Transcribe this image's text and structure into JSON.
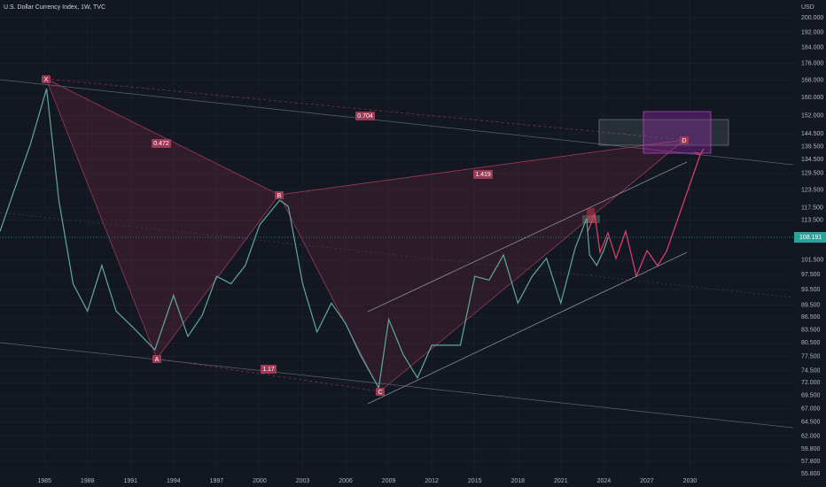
{
  "chart_data": {
    "type": "line",
    "title": "U.S. Dollar Currency Index, 1W, TVC",
    "y_unit": "USD",
    "log_scale": true,
    "grid": true,
    "color": "#5fa89c",
    "last_price": 108.191,
    "x": [
      1981.9,
      1983,
      1984,
      1985.15,
      1986,
      1987,
      1988,
      1989,
      1990,
      1991.2,
      1992.7,
      1994,
      1995,
      1996,
      1997,
      1998,
      1999,
      2000,
      2001.4,
      2002,
      2003,
      2004,
      2005,
      2006,
      2007,
      2008.3,
      2009,
      2010,
      2011,
      2012,
      2013,
      2014,
      2015,
      2016,
      2017,
      2018,
      2019,
      2020,
      2021,
      2022,
      2022.8,
      2023,
      2023.5,
      2024,
      2024.3
    ],
    "values": [
      110,
      125,
      140,
      164,
      120,
      95,
      88,
      100,
      88,
      84,
      79,
      92,
      82,
      87,
      97,
      95,
      100,
      112,
      120,
      118,
      95,
      83,
      90,
      85,
      78,
      71,
      86,
      78,
      73,
      80,
      80,
      80,
      97,
      96,
      103,
      90,
      97,
      102,
      90,
      105,
      114,
      103,
      100,
      104.5,
      108.2
    ],
    "xlim": [
      1981.9,
      2037.2
    ],
    "ylim": [
      53.8,
      210.2
    ],
    "xticks": [
      1985,
      1988,
      1991,
      1994,
      1997,
      2000,
      2003,
      2006,
      2009,
      2012,
      2015,
      2018,
      2021,
      2024,
      2027,
      2030
    ],
    "yticks": [
      {
        "value": 200,
        "label": "200.000"
      },
      {
        "value": 192,
        "label": "192.000"
      },
      {
        "value": 184,
        "label": "184.000"
      },
      {
        "value": 176,
        "label": "176.000"
      },
      {
        "value": 168,
        "label": "168.000"
      },
      {
        "value": 160,
        "label": "160.000"
      },
      {
        "value": 152,
        "label": "152.000"
      },
      {
        "value": 144.5,
        "label": "144.500"
      },
      {
        "value": 139.5,
        "label": "139.500"
      },
      {
        "value": 134.5,
        "label": "134.500"
      },
      {
        "value": 129.5,
        "label": "129.500"
      },
      {
        "value": 123.5,
        "label": "123.500"
      },
      {
        "value": 117.5,
        "label": "117.500"
      },
      {
        "value": 113.5,
        "label": "113.500"
      },
      {
        "value": 101.5,
        "label": "101.500"
      },
      {
        "value": 97.5,
        "label": "97.500"
      },
      {
        "value": 93.5,
        "label": "93.500"
      },
      {
        "value": 89.5,
        "label": "89.500"
      },
      {
        "value": 86.5,
        "label": "86.500"
      },
      {
        "value": 83.5,
        "label": "83.500"
      },
      {
        "value": 80.5,
        "label": "80.500"
      },
      {
        "value": 77.5,
        "label": "77.500"
      },
      {
        "value": 74.5,
        "label": "74.500"
      },
      {
        "value": 72,
        "label": "72.000"
      },
      {
        "value": 69.5,
        "label": "69.500"
      },
      {
        "value": 67,
        "label": "67.000"
      },
      {
        "value": 64.5,
        "label": "64.500"
      },
      {
        "value": 62,
        "label": "62.000"
      },
      {
        "value": 59.8,
        "label": "59.800"
      },
      {
        "value": 57.8,
        "label": "57.800"
      },
      {
        "value": 55.8,
        "label": "55.800"
      }
    ],
    "annotations": {
      "x": "X",
      "a": "A",
      "b": "B",
      "c": "C",
      "d": "D",
      "r1": "0.472",
      "r2": "0.704",
      "r3": "1.419",
      "r4": "1.17"
    }
  }
}
